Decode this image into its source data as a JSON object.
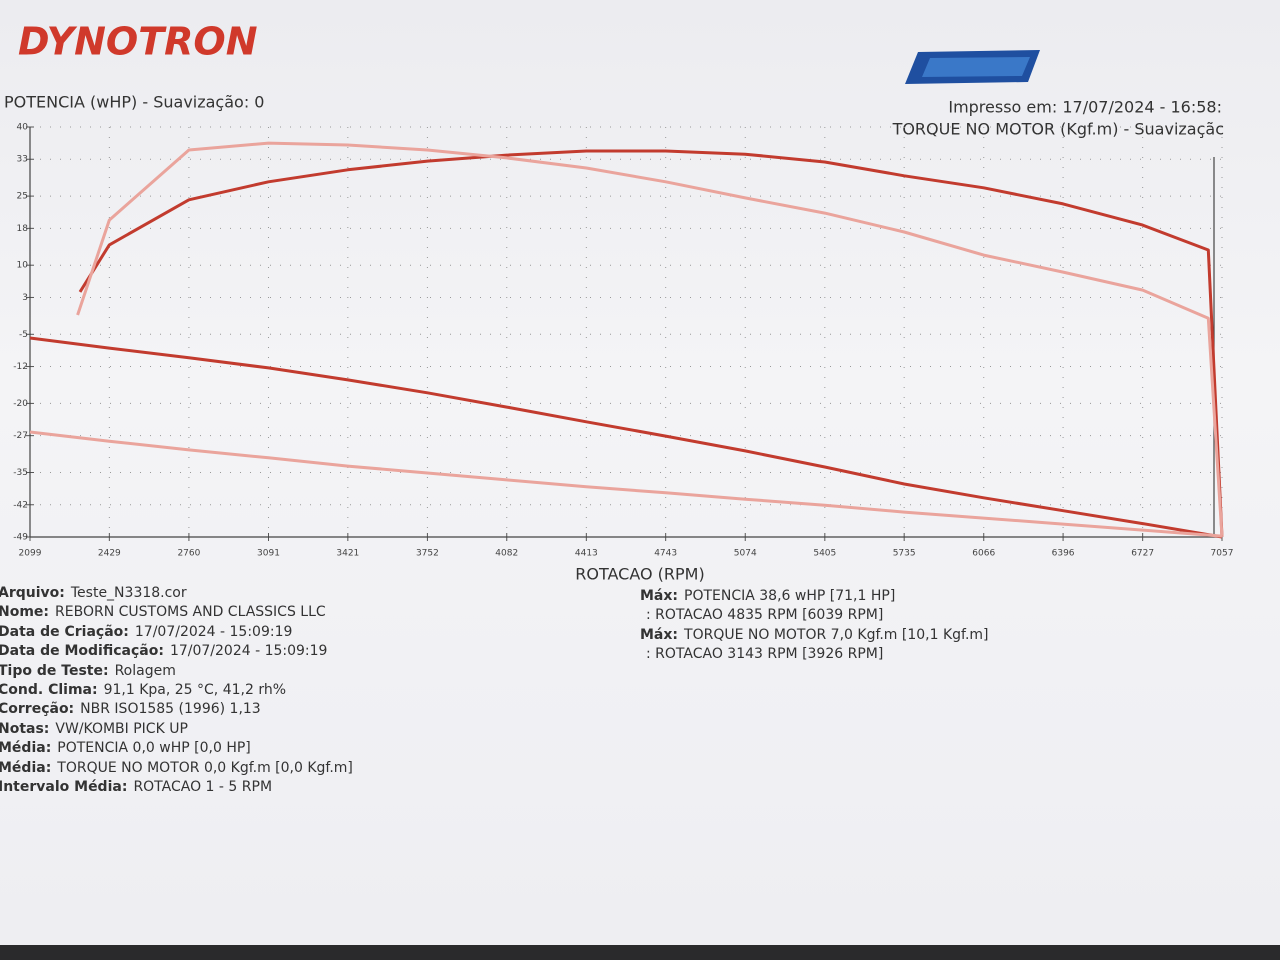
{
  "header": {
    "brand": "DYNOTRON",
    "printed": "Impresso em: 17/07/2024 - 16:58:"
  },
  "chart_data": {
    "type": "line",
    "title": "POTENCIA (wHP)  - Suavização: 0",
    "y2_label": "TORQUE NO MOTOR (Kgf.m) - Suavizaçãc",
    "x_label": "ROTACAO (RPM)",
    "xlim": [
      2099,
      7057
    ],
    "xticks": [
      2099,
      2429,
      2760,
      3091,
      3421,
      3752,
      4082,
      4413,
      4743,
      5074,
      5405,
      5735,
      6066,
      6396,
      6727,
      7057
    ],
    "ylim": [
      -49,
      40
    ],
    "yticks": [
      40,
      33,
      25,
      18,
      10,
      3,
      -5,
      -12,
      -20,
      -27,
      -35,
      -42,
      -49
    ],
    "grid": true,
    "series": [
      {
        "color": "#c23b2e",
        "x": [
          2307,
          2429,
          2760,
          3091,
          3421,
          3752,
          4082,
          4413,
          4743,
          5074,
          5405,
          5735,
          6066,
          6396,
          6727,
          7000,
          7057
        ],
        "values": [
          4.2,
          14.4,
          24.2,
          28.1,
          30.7,
          32.6,
          33.9,
          34.8,
          34.8,
          34.1,
          32.4,
          29.4,
          26.8,
          23.3,
          18.7,
          13.3,
          -49
        ]
      },
      {
        "color": "#eaa49c",
        "x": [
          2297,
          2429,
          2760,
          3091,
          3421,
          3752,
          4082,
          4413,
          4743,
          5074,
          5405,
          5735,
          6066,
          6396,
          6727,
          7000,
          7057
        ],
        "values": [
          -0.8,
          19.8,
          35,
          36.5,
          36.1,
          35,
          33.3,
          31.1,
          28.1,
          24.6,
          21.3,
          17.2,
          12.2,
          8.5,
          4.6,
          -1.5,
          -49
        ]
      },
      {
        "color": "#c23b2e",
        "x": [
          2099,
          2429,
          2760,
          3091,
          3421,
          3752,
          4082,
          4413,
          4743,
          5074,
          5405,
          5735,
          6066,
          6396,
          6727,
          7057
        ],
        "values": [
          -5.8,
          -8,
          -10.1,
          -12.3,
          -14.9,
          -17.7,
          -20.8,
          -24,
          -27.1,
          -30.3,
          -33.8,
          -37.5,
          -40.5,
          -43.3,
          -46.1,
          -49
        ]
      },
      {
        "color": "#eaa49c",
        "x": [
          2099,
          2429,
          2760,
          3091,
          3421,
          3752,
          4082,
          4413,
          4743,
          5074,
          5405,
          5735,
          6066,
          6396,
          6727,
          7057
        ],
        "values": [
          -26.2,
          -28.2,
          -30.1,
          -31.8,
          -33.6,
          -35.1,
          -36.6,
          -38.1,
          -39.4,
          -40.8,
          -42.1,
          -43.6,
          -44.9,
          -46.2,
          -47.5,
          -48.8
        ]
      }
    ]
  },
  "info": {
    "left": [
      {
        "label": "Arquivo:",
        "value": "Teste_N3318.cor"
      },
      {
        "label": "Nome:",
        "value": "REBORN CUSTOMS AND CLASSICS LLC"
      },
      {
        "label": "Data de Criação:",
        "value": "17/07/2024 - 15:09:19"
      },
      {
        "label": "Data de Modificação:",
        "value": "17/07/2024 - 15:09:19"
      },
      {
        "label": "Tipo de Teste:",
        "value": "Rolagem"
      },
      {
        "label": "Cond. Clima:",
        "value": "91,1 Kpa, 25 °C, 41,2 rh%"
      },
      {
        "label": "Correção:",
        "value": "NBR ISO1585 (1996) 1,13"
      },
      {
        "label": "Notas:",
        "value": "VW/KOMBI PICK UP"
      },
      {
        "label": "Média:",
        "value": "POTENCIA 0,0 wHP [0,0 HP]"
      },
      {
        "label": "Média:",
        "value": "TORQUE NO MOTOR 0,0 Kgf.m [0,0 Kgf.m]"
      },
      {
        "label": "Intervalo Média:",
        "value": "ROTACAO 1 - 5 RPM"
      }
    ],
    "right": [
      {
        "label": "Máx:",
        "value": "POTENCIA 38,6 wHP [71,1 HP]"
      },
      {
        "label": "",
        "value": ": ROTACAO 4835 RPM [6039 RPM]"
      },
      {
        "label": "Máx:",
        "value": "TORQUE NO MOTOR 7,0 Kgf.m [10,1 Kgf.m]"
      },
      {
        "label": "",
        "value": ": ROTACAO 3143 RPM [3926 RPM]"
      }
    ]
  }
}
